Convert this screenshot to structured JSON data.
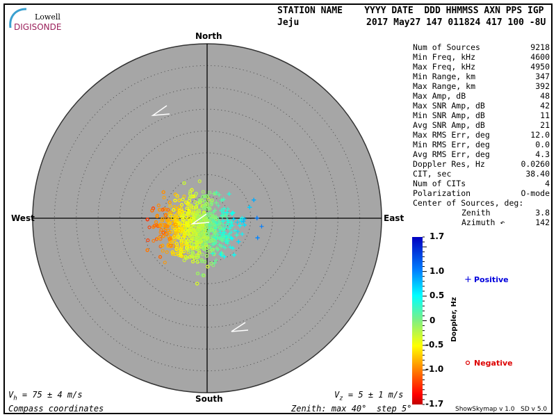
{
  "logo": {
    "line1": "Lowell",
    "line2": "DIGISONDE"
  },
  "header": {
    "labels": "STATION NAME    YYYY DATE  DDD HHMMSS AXN PPS IGP",
    "station": "Jeju",
    "values": "2017 May27 147 011824 417 100 -8U"
  },
  "stats": [
    {
      "label": "Num of Sources",
      "value": "9218"
    },
    {
      "label": "Min Freq, kHz",
      "value": "4600"
    },
    {
      "label": "Max Freq, kHz",
      "value": "4950"
    },
    {
      "label": "Min Range, km",
      "value": "347"
    },
    {
      "label": "Max Range, km",
      "value": "392"
    },
    {
      "label": "Max Amp, dB",
      "value": "48"
    },
    {
      "label": "Max SNR Amp, dB",
      "value": "42"
    },
    {
      "label": "Min SNR Amp, dB",
      "value": "11"
    },
    {
      "label": "Avg SNR Amp, dB",
      "value": "21"
    },
    {
      "label": "Max RMS Err, deg",
      "value": "12.0"
    },
    {
      "label": "Min RMS Err, deg",
      "value": "0.0"
    },
    {
      "label": "Avg RMS Err, deg",
      "value": "4.3"
    },
    {
      "label": "Doppler Res, Hz",
      "value": "0.0260"
    },
    {
      "label": "CIT, sec",
      "value": "38.40"
    },
    {
      "label": "Num of CITs",
      "value": "4"
    },
    {
      "label": "Polarization",
      "value": "O-mode"
    }
  ],
  "center": {
    "title": "Center of Sources, deg:",
    "zenith_label": "Zenith",
    "zenith": "3.8",
    "azimuth_label": "Azimuth ↶",
    "azimuth": "142"
  },
  "chart_data": {
    "type": "scatter",
    "projection": "polar skymap",
    "directions": {
      "north": "North",
      "south": "South",
      "east": "East",
      "west": "West"
    },
    "zenith_max_deg": 40,
    "zenith_step_deg": 5,
    "colorbar": {
      "label": "Doppler, Hz",
      "range": [
        -1.7,
        1.7
      ],
      "ticks": [
        "1.7",
        "1.0",
        "0.5",
        "0",
        "-0.5",
        "-1.0",
        "-1.7"
      ],
      "tick_values": [
        1.7,
        1.0,
        0.5,
        0,
        -0.5,
        -1.0,
        -1.7
      ]
    },
    "legend": {
      "positive": "Positive",
      "negative": "Negative",
      "positive_marker": "+",
      "negative_marker": "o",
      "positive_color": "#0000dd",
      "negative_color": "#dd0000"
    },
    "plot_bg": "#a6a6a6",
    "num_sources": 9218
  },
  "footer": {
    "vh_sym": "V",
    "vh_sub": "h",
    "vh": " = 75 ± 4 m/s",
    "vz_sym": "V",
    "vz_sub": "z",
    "vz": " = 5 ± 1 m/s",
    "coords": "Compass coordinates",
    "zenith": "Zenith: max 40°  step 5°",
    "version": "ShowSkymap v 1.0   SD v 5.0"
  }
}
